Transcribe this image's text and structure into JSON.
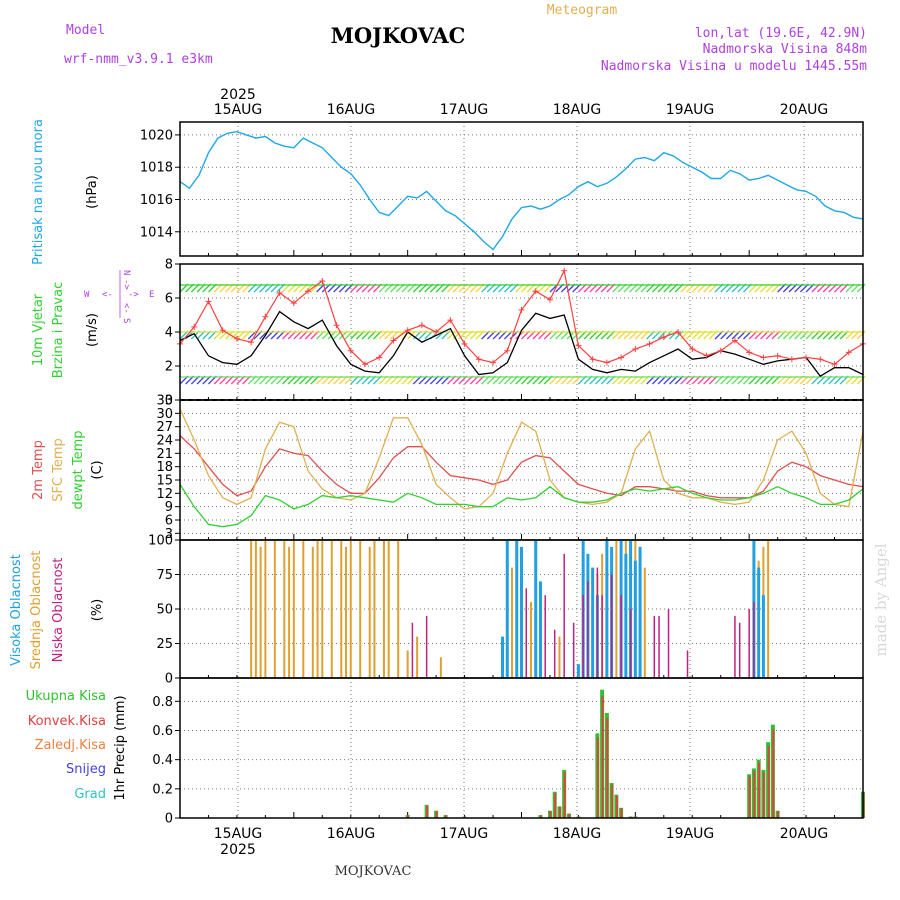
{
  "header": {
    "model_label": "Model",
    "model_name": "wrf-nmm_v3.9.1 e3km",
    "station": "MOJKOVAC",
    "product": "Meteogram",
    "coords": "lon,lat (19.6E, 42.9N)",
    "elevation": "Nadmorska Visina 848m",
    "model_elevation": "Nadmorska Visina u modelu 1445.55m",
    "footer_station": "MOJKOVAC",
    "watermark": "made by Angel",
    "year_top": "2025",
    "year_bottom": "2025"
  },
  "colors": {
    "pressure": "#1fa8e8",
    "wind_speed": "#000000",
    "wind_gust": "#ff4040",
    "temp2m": "#e05050",
    "sfc": "#e0b050",
    "dewpt": "#30d030",
    "high_cloud": "#20a0e0",
    "mid_cloud": "#e0a030",
    "low_cloud": "#c02080",
    "total_precip": "#30c030",
    "conv_precip": "#e04040",
    "frozen": "#f08040",
    "snow": "#4040e0",
    "hail": "#30c0c0",
    "header_purple": "#b040e0",
    "header_gold": "#e0b050"
  },
  "chart_data": [
    {
      "type": "line",
      "name": "pressure",
      "ylabel_main": "Pritisak na nivou mora",
      "ylabel_unit": "(hPa)",
      "ylim": [
        1012.5,
        1020.8
      ],
      "yticks": [
        1014,
        1016,
        1018,
        1020
      ],
      "x_days": [
        "15AUG",
        "16AUG",
        "17AUG",
        "18AUG",
        "19AUG",
        "20AUG"
      ],
      "x": [
        0,
        2,
        4,
        6,
        8,
        10,
        12,
        14,
        16,
        18,
        20,
        22,
        24,
        26,
        28,
        30,
        32,
        34,
        36,
        38,
        40,
        42,
        44,
        46,
        48,
        50,
        52,
        54,
        56,
        58,
        60,
        62,
        64,
        66,
        68,
        70,
        72,
        74,
        76,
        78,
        80,
        82,
        84,
        86,
        88,
        90,
        92,
        94,
        96,
        98,
        100,
        102,
        104,
        106,
        108,
        110,
        112,
        114,
        116,
        118,
        120,
        122,
        124,
        126,
        128,
        130,
        132,
        134,
        136,
        138,
        140,
        142,
        144
      ],
      "values": [
        1017.1,
        1016.7,
        1017.5,
        1018.9,
        1019.8,
        1020.1,
        1020.2,
        1020.0,
        1019.8,
        1019.9,
        1019.5,
        1019.3,
        1019.2,
        1019.8,
        1019.5,
        1019.2,
        1018.6,
        1018.0,
        1017.6,
        1016.9,
        1016.0,
        1015.2,
        1015.0,
        1015.6,
        1016.2,
        1016.1,
        1016.5,
        1015.9,
        1015.3,
        1015.0,
        1014.5,
        1014.0,
        1013.4,
        1012.9,
        1013.7,
        1014.8,
        1015.5,
        1015.6,
        1015.4,
        1015.6,
        1016.0,
        1016.3,
        1016.8,
        1017.1,
        1016.8,
        1017.0,
        1017.4,
        1017.9,
        1018.5,
        1018.6,
        1018.4,
        1018.9,
        1018.7,
        1018.3,
        1018.0,
        1017.7,
        1017.3,
        1017.3,
        1017.8,
        1017.6,
        1017.2,
        1017.3,
        1017.5,
        1017.2,
        1016.9,
        1016.6,
        1016.5,
        1016.2,
        1015.6,
        1015.3,
        1015.2,
        1014.9,
        1014.8
      ]
    },
    {
      "type": "line",
      "name": "wind",
      "ylabel_main": "10m Vjetar",
      "ylabel_sub": "Brzina i Pravac",
      "ylabel_unit": "(m/s)",
      "compass": {
        "n": "N",
        "w": "W",
        "e": "E",
        "s": "S",
        "vec_w": "<-",
        "vec_e": "->",
        "vec_n": "->",
        "vec_s": "<-"
      },
      "ylim": [
        0,
        8
      ],
      "yticks": [
        0,
        2,
        4,
        6,
        8
      ],
      "x": [
        0,
        3,
        6,
        9,
        12,
        15,
        18,
        21,
        24,
        27,
        30,
        33,
        36,
        39,
        42,
        45,
        48,
        51,
        54,
        57,
        60,
        63,
        66,
        69,
        72,
        75,
        78,
        81,
        84,
        87,
        90,
        93,
        96,
        99,
        102,
        105,
        108,
        111,
        114,
        117,
        120,
        123,
        126,
        129,
        132,
        135,
        138,
        141,
        144
      ],
      "series": [
        {
          "name": "speed",
          "values": [
            3.5,
            3.9,
            2.6,
            2.2,
            2.1,
            2.6,
            3.8,
            5.2,
            4.6,
            4.2,
            4.7,
            3.2,
            2.1,
            1.7,
            1.6,
            2.6,
            4.0,
            3.4,
            3.8,
            4.2,
            2.6,
            1.5,
            1.6,
            2.2,
            4.1,
            5.1,
            4.8,
            5.0,
            2.4,
            1.8,
            1.6,
            1.8,
            1.7,
            2.2,
            2.6,
            3.0,
            2.4,
            2.5,
            2.9,
            2.7,
            2.4,
            2.1,
            2.3,
            2.4,
            2.5,
            1.4,
            1.9,
            1.9,
            1.5
          ]
        },
        {
          "name": "gust",
          "values": [
            3.3,
            4.3,
            5.8,
            4.1,
            3.6,
            3.4,
            4.9,
            6.3,
            5.7,
            6.4,
            7.0,
            4.4,
            2.9,
            2.1,
            2.5,
            3.5,
            4.1,
            4.4,
            4.0,
            4.7,
            3.3,
            2.4,
            2.2,
            2.9,
            5.3,
            6.4,
            5.9,
            7.6,
            3.2,
            2.4,
            2.2,
            2.5,
            3.0,
            3.3,
            3.7,
            4.0,
            3.0,
            2.6,
            2.9,
            3.5,
            2.8,
            2.5,
            2.6,
            2.4,
            2.5,
            2.4,
            2.1,
            2.8,
            3.3
          ]
        }
      ]
    },
    {
      "type": "line",
      "name": "temperature",
      "ylabel_main": "2m Temp",
      "ylabel_sub": "SFC Temp",
      "ylabel_sub2": "dewpt Temp",
      "ylabel_unit": "(C)",
      "ylim": [
        1.5,
        33
      ],
      "yticks": [
        3,
        6,
        9,
        12,
        15,
        18,
        21,
        24,
        27,
        30,
        33
      ],
      "x": [
        0,
        3,
        6,
        9,
        12,
        15,
        18,
        21,
        24,
        27,
        30,
        33,
        36,
        39,
        42,
        45,
        48,
        51,
        54,
        57,
        60,
        63,
        66,
        69,
        72,
        75,
        78,
        81,
        84,
        87,
        90,
        93,
        96,
        99,
        102,
        105,
        108,
        111,
        114,
        117,
        120,
        123,
        126,
        129,
        132,
        135,
        138,
        141,
        144
      ],
      "series": [
        {
          "name": "2m Temp",
          "values": [
            25,
            22,
            18,
            14,
            11.5,
            12.5,
            18,
            22,
            21,
            20.5,
            17,
            14,
            12,
            12,
            15.5,
            20,
            22.5,
            22.5,
            19,
            16,
            15.5,
            15,
            14,
            15,
            19,
            20.5,
            20,
            17,
            14,
            13,
            12,
            11.5,
            13.5,
            13.5,
            13,
            12.5,
            12.5,
            11.5,
            11,
            11,
            11,
            12.5,
            17,
            19,
            18,
            16,
            15,
            14,
            13.5
          ]
        },
        {
          "name": "SFC Temp",
          "values": [
            31,
            24,
            16,
            11,
            9.5,
            11,
            22,
            28,
            27,
            17,
            13,
            11,
            10.5,
            12,
            20,
            29,
            29,
            23,
            14,
            11,
            8.5,
            9,
            12,
            21,
            28,
            26,
            15,
            11,
            10,
            9.5,
            10,
            12,
            22,
            26,
            15,
            12,
            11,
            11,
            10,
            9.5,
            10,
            15,
            24,
            26,
            21,
            12,
            9.5,
            9,
            26
          ]
        },
        {
          "name": "dewpt Temp",
          "values": [
            14,
            9,
            5,
            4.5,
            5,
            7,
            11.5,
            10.5,
            8.5,
            9.5,
            11.5,
            11,
            11.5,
            11,
            10.5,
            10,
            12,
            11,
            9.5,
            9.5,
            9.5,
            9,
            9,
            11,
            10.5,
            11,
            13.5,
            11,
            10,
            10,
            10.5,
            12,
            13,
            12.5,
            13,
            13.5,
            12,
            11,
            10.5,
            10.5,
            11,
            12,
            13.5,
            12,
            11,
            9.5,
            9.5,
            10.5,
            13
          ]
        }
      ]
    },
    {
      "type": "bar",
      "name": "cloudiness",
      "ylabel_main": "Visoka Oblacnost",
      "ylabel_sub": "Srednja Oblacnost",
      "ylabel_sub2": "Niska Oblacnost",
      "ylabel_unit": "(%)",
      "ylim": [
        0,
        100
      ],
      "yticks": [
        0,
        25,
        50,
        75,
        100
      ],
      "high": [
        [
          68,
          30
        ],
        [
          69,
          100
        ],
        [
          71,
          100
        ],
        [
          72,
          95
        ],
        [
          75,
          100
        ],
        [
          76,
          70
        ],
        [
          84,
          10
        ],
        [
          85,
          100
        ],
        [
          86,
          90
        ],
        [
          87,
          80
        ],
        [
          88,
          60
        ],
        [
          90,
          100
        ],
        [
          91,
          95
        ],
        [
          93,
          100
        ],
        [
          94,
          90
        ],
        [
          95,
          100
        ],
        [
          96,
          85
        ],
        [
          97,
          95
        ],
        [
          121,
          100
        ],
        [
          122,
          80
        ],
        [
          123,
          60
        ]
      ],
      "mid": [
        [
          15,
          100
        ],
        [
          16,
          100
        ],
        [
          17,
          95
        ],
        [
          18,
          100
        ],
        [
          20,
          100
        ],
        [
          22,
          100
        ],
        [
          23,
          95
        ],
        [
          24,
          100
        ],
        [
          26,
          100
        ],
        [
          28,
          95
        ],
        [
          29,
          100
        ],
        [
          30,
          100
        ],
        [
          32,
          100
        ],
        [
          34,
          100
        ],
        [
          35,
          95
        ],
        [
          36,
          100
        ],
        [
          38,
          100
        ],
        [
          40,
          95
        ],
        [
          41,
          100
        ],
        [
          43,
          100
        ],
        [
          44,
          100
        ],
        [
          46,
          100
        ],
        [
          48,
          20
        ],
        [
          50,
          30
        ],
        [
          55,
          15
        ],
        [
          70,
          80
        ],
        [
          72,
          90
        ],
        [
          74,
          55
        ],
        [
          80,
          30
        ],
        [
          86,
          45
        ],
        [
          87,
          60
        ],
        [
          88,
          75
        ],
        [
          89,
          90
        ],
        [
          90,
          100
        ],
        [
          92,
          100
        ],
        [
          93,
          95
        ],
        [
          94,
          100
        ],
        [
          96,
          100
        ],
        [
          97,
          90
        ],
        [
          98,
          80
        ],
        [
          122,
          85
        ],
        [
          123,
          95
        ],
        [
          124,
          100
        ]
      ],
      "low": [
        [
          49,
          40
        ],
        [
          52,
          45
        ],
        [
          73,
          65
        ],
        [
          77,
          60
        ],
        [
          79,
          35
        ],
        [
          81,
          90
        ],
        [
          83,
          40
        ],
        [
          85,
          60
        ],
        [
          86,
          70
        ],
        [
          88,
          80
        ],
        [
          89,
          60
        ],
        [
          91,
          75
        ],
        [
          93,
          60
        ],
        [
          95,
          50
        ],
        [
          100,
          45
        ],
        [
          101,
          45
        ],
        [
          103,
          50
        ],
        [
          107,
          20
        ],
        [
          117,
          45
        ],
        [
          118,
          40
        ],
        [
          120,
          50
        ],
        [
          121,
          55
        ]
      ]
    },
    {
      "type": "bar",
      "name": "precipitation",
      "ylabel_unit": "1hr Precip (mm)",
      "legend": [
        "Ukupna Kisa",
        "Konvek.Kisa",
        "Zaledj.Kisa",
        "Snijeg",
        "Grad"
      ],
      "ylim": [
        0,
        0.96
      ],
      "yticks": [
        0,
        0.2,
        0.4,
        0.6,
        0.8
      ],
      "ytick_labels": [
        "0",
        "0.2",
        "0.4",
        "0.6",
        "0.8"
      ],
      "x": [
        48,
        52,
        54,
        56,
        60,
        76,
        78,
        79,
        80,
        81,
        82,
        84,
        88,
        89,
        90,
        91,
        92,
        93,
        95,
        96,
        120,
        121,
        122,
        123,
        124,
        125,
        126,
        144
      ],
      "values": [
        0.02,
        0.09,
        0.05,
        0.02,
        0.01,
        0.02,
        0.05,
        0.18,
        0.08,
        0.33,
        0.03,
        0.01,
        0.58,
        0.88,
        0.72,
        0.24,
        0.16,
        0.07,
        0.01,
        0.01,
        0.3,
        0.34,
        0.4,
        0.33,
        0.52,
        0.64,
        0.05,
        0.18
      ]
    }
  ]
}
